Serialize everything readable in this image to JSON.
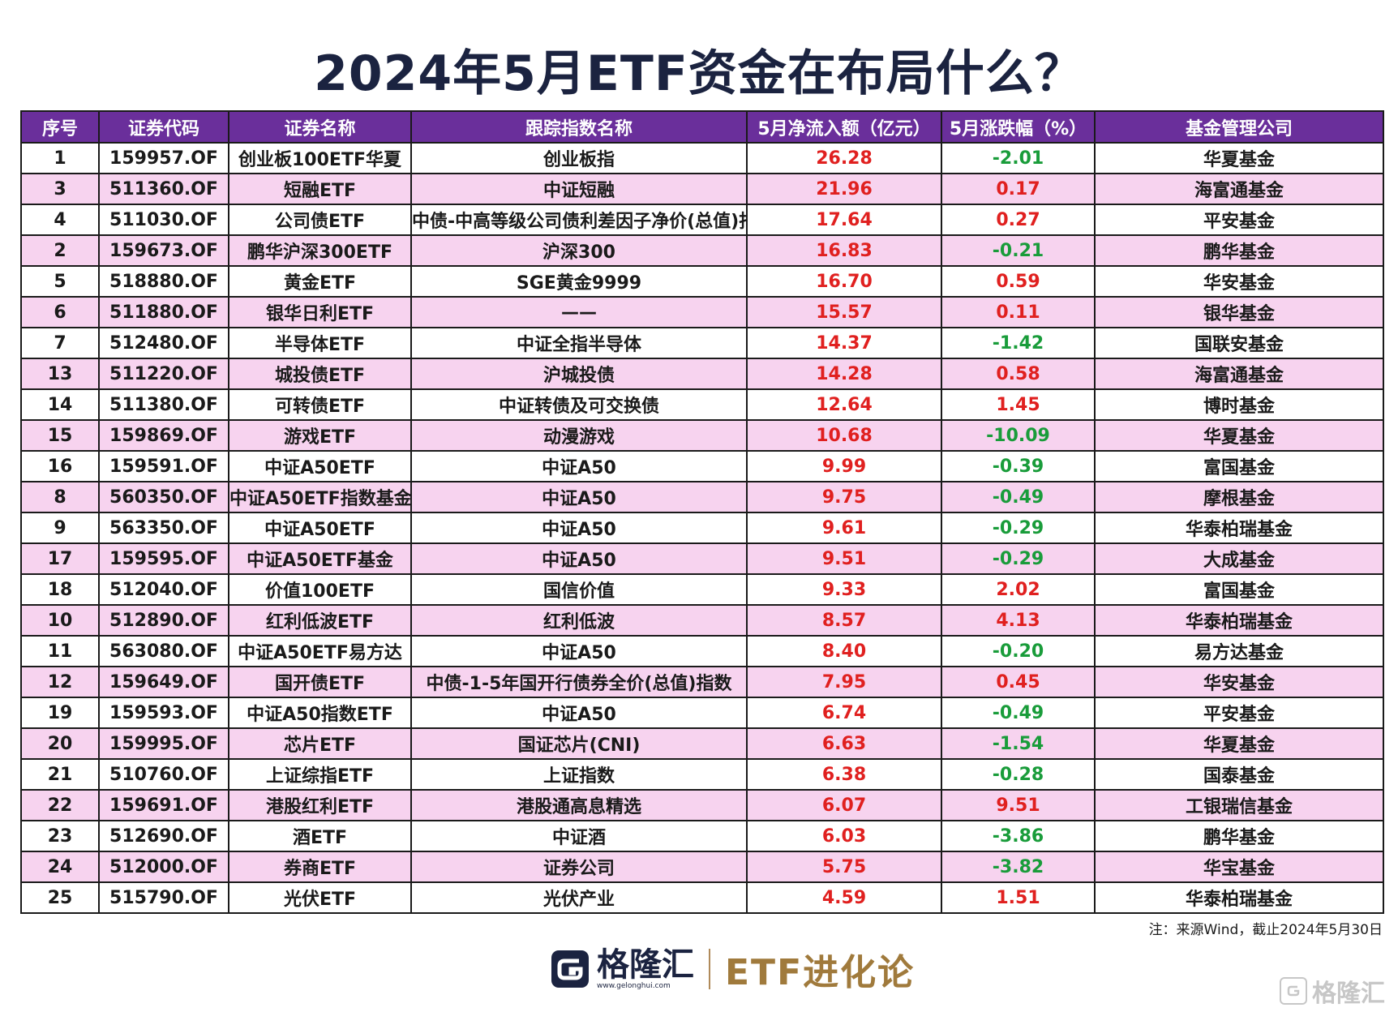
{
  "title": "2024年5月ETF资金在布局什么？",
  "colors": {
    "header_bg": "#6a2f9b",
    "alt_row_bg": "#f7d3ef",
    "positive": "#e0201f",
    "negative": "#199c3a",
    "title_text": "#1b2340",
    "brand_text": "#a07a3c"
  },
  "table": {
    "headers": [
      "序号",
      "证券代码",
      "证券名称",
      "跟踪指数名称",
      "5月净流入额（亿元）",
      "5月涨跌幅（%）",
      "基金管理公司"
    ],
    "rows": [
      [
        "1",
        "159957.OF",
        "创业板100ETF华夏",
        "创业板指",
        "26.28",
        "-2.01",
        "华夏基金"
      ],
      [
        "3",
        "511360.OF",
        "短融ETF",
        "中证短融",
        "21.96",
        "0.17",
        "海富通基金"
      ],
      [
        "4",
        "511030.OF",
        "公司债ETF",
        "中债-中高等级公司债利差因子净价(总值)指数",
        "17.64",
        "0.27",
        "平安基金"
      ],
      [
        "2",
        "159673.OF",
        "鹏华沪深300ETF",
        "沪深300",
        "16.83",
        "-0.21",
        "鹏华基金"
      ],
      [
        "5",
        "518880.OF",
        "黄金ETF",
        "SGE黄金9999",
        "16.70",
        "0.59",
        "华安基金"
      ],
      [
        "6",
        "511880.OF",
        "银华日利ETF",
        "——",
        "15.57",
        "0.11",
        "银华基金"
      ],
      [
        "7",
        "512480.OF",
        "半导体ETF",
        "中证全指半导体",
        "14.37",
        "-1.42",
        "国联安基金"
      ],
      [
        "13",
        "511220.OF",
        "城投债ETF",
        "沪城投债",
        "14.28",
        "0.58",
        "海富通基金"
      ],
      [
        "14",
        "511380.OF",
        "可转债ETF",
        "中证转债及可交换债",
        "12.64",
        "1.45",
        "博时基金"
      ],
      [
        "15",
        "159869.OF",
        "游戏ETF",
        "动漫游戏",
        "10.68",
        "-10.09",
        "华夏基金"
      ],
      [
        "16",
        "159591.OF",
        "中证A50ETF",
        "中证A50",
        "9.99",
        "-0.39",
        "富国基金"
      ],
      [
        "8",
        "560350.OF",
        "中证A50ETF指数基金",
        "中证A50",
        "9.75",
        "-0.49",
        "摩根基金"
      ],
      [
        "9",
        "563350.OF",
        "中证A50ETF",
        "中证A50",
        "9.61",
        "-0.29",
        "华泰柏瑞基金"
      ],
      [
        "17",
        "159595.OF",
        "中证A50ETF基金",
        "中证A50",
        "9.51",
        "-0.29",
        "大成基金"
      ],
      [
        "18",
        "512040.OF",
        "价值100ETF",
        "国信价值",
        "9.33",
        "2.02",
        "富国基金"
      ],
      [
        "10",
        "512890.OF",
        "红利低波ETF",
        "红利低波",
        "8.57",
        "4.13",
        "华泰柏瑞基金"
      ],
      [
        "11",
        "563080.OF",
        "中证A50ETF易方达",
        "中证A50",
        "8.40",
        "-0.20",
        "易方达基金"
      ],
      [
        "12",
        "159649.OF",
        "国开债ETF",
        "中债-1-5年国开行债券全价(总值)指数",
        "7.95",
        "0.45",
        "华安基金"
      ],
      [
        "19",
        "159593.OF",
        "中证A50指数ETF",
        "中证A50",
        "6.74",
        "-0.49",
        "平安基金"
      ],
      [
        "20",
        "159995.OF",
        "芯片ETF",
        "国证芯片(CNI)",
        "6.63",
        "-1.54",
        "华夏基金"
      ],
      [
        "21",
        "510760.OF",
        "上证综指ETF",
        "上证指数",
        "6.38",
        "-0.28",
        "国泰基金"
      ],
      [
        "22",
        "159691.OF",
        "港股红利ETF",
        "港股通高息精选",
        "6.07",
        "9.51",
        "工银瑞信基金"
      ],
      [
        "23",
        "512690.OF",
        "酒ETF",
        "中证酒",
        "6.03",
        "-3.86",
        "鹏华基金"
      ],
      [
        "24",
        "512000.OF",
        "券商ETF",
        "证券公司",
        "5.75",
        "-3.82",
        "华宝基金"
      ],
      [
        "25",
        "515790.OF",
        "光伏ETF",
        "光伏产业",
        "4.59",
        "1.51",
        "华泰柏瑞基金"
      ]
    ]
  },
  "note": "注：来源Wind，截止2024年5月30日",
  "footer": {
    "logo_icon": "gelonghui-g-logo",
    "logo_name": "格隆汇",
    "logo_url": "www.gelonghui.com",
    "brand": "ETF进化论"
  },
  "watermark": {
    "icon": "gelonghui-g-logo",
    "text": "格隆汇"
  }
}
